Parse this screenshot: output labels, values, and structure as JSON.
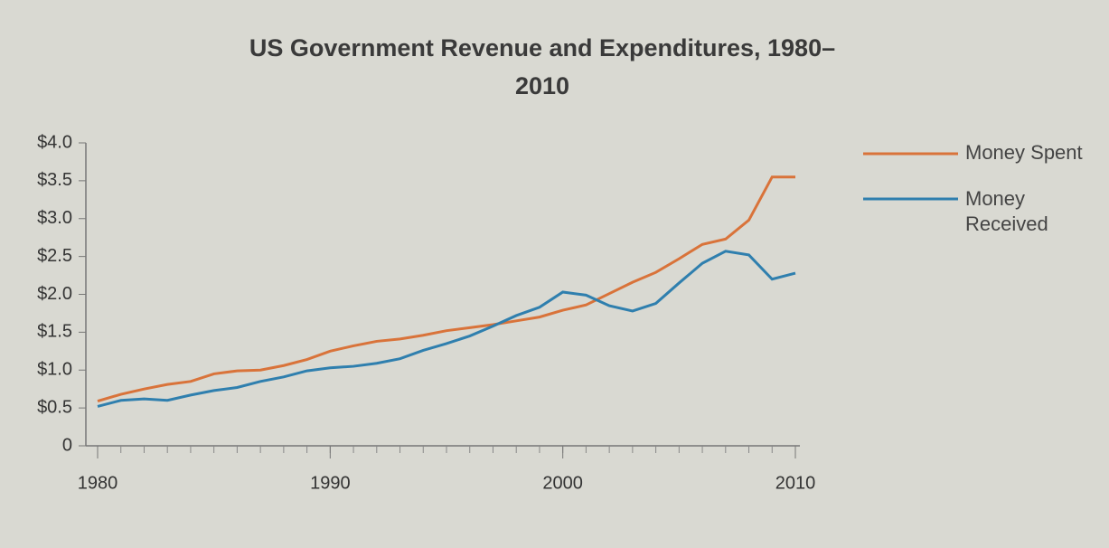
{
  "chart_data": {
    "type": "line",
    "title": "US Government Revenue and Expenditures, 1980–2010",
    "x": [
      1980,
      1981,
      1982,
      1983,
      1984,
      1985,
      1986,
      1987,
      1988,
      1989,
      1990,
      1991,
      1992,
      1993,
      1994,
      1995,
      1996,
      1997,
      1998,
      1999,
      2000,
      2001,
      2002,
      2003,
      2004,
      2005,
      2006,
      2007,
      2008,
      2009,
      2010
    ],
    "series": [
      {
        "name": "Money Spent",
        "color": "#d9733a",
        "values": [
          0.59,
          0.68,
          0.75,
          0.81,
          0.85,
          0.95,
          0.99,
          1.0,
          1.06,
          1.14,
          1.25,
          1.32,
          1.38,
          1.41,
          1.46,
          1.52,
          1.56,
          1.6,
          1.65,
          1.7,
          1.79,
          1.86,
          2.01,
          2.16,
          2.29,
          2.47,
          2.66,
          2.73,
          2.98,
          3.55,
          3.55
        ]
      },
      {
        "name": "Money Received",
        "color": "#2f7fae",
        "values": [
          0.52,
          0.6,
          0.62,
          0.6,
          0.67,
          0.73,
          0.77,
          0.85,
          0.91,
          0.99,
          1.03,
          1.05,
          1.09,
          1.15,
          1.26,
          1.35,
          1.45,
          1.58,
          1.72,
          1.83,
          2.03,
          1.99,
          1.85,
          1.78,
          1.88,
          2.15,
          2.41,
          2.57,
          2.52,
          2.2,
          2.28
        ]
      }
    ],
    "xlim": [
      1980,
      2010
    ],
    "xticks": [
      1980,
      1990,
      2000,
      2010
    ],
    "ylim": [
      0,
      4
    ],
    "yticks": [
      0,
      {
        "value": 0.5,
        "label": "$0.5"
      },
      {
        "value": 1,
        "label": "$1.0"
      },
      {
        "value": 1.5,
        "label": "$1.5"
      },
      {
        "value": 2,
        "label": "$2.0"
      },
      {
        "value": 2.5,
        "label": "$2.5"
      },
      {
        "value": 3,
        "label": "$3.0"
      },
      {
        "value": 3.5,
        "label": "$3.5"
      },
      {
        "value": 4,
        "label": "$4.0"
      }
    ],
    "grid": false,
    "legend": "right"
  }
}
